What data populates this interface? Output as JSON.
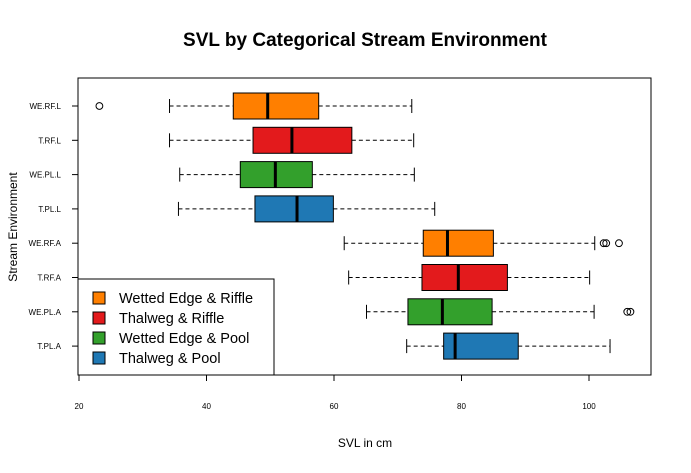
{
  "chart_data": {
    "type": "boxplot",
    "orientation": "horizontal",
    "title": "SVL by Categorical Stream Environment",
    "xlabel": "SVL in cm",
    "ylabel": "Stream Environment",
    "xlim": [
      20,
      110
    ],
    "x_ticks": [
      20,
      40,
      60,
      80,
      100
    ],
    "grid": false,
    "legend_position": "bottom-left",
    "colors": {
      "wetted_edge_riffle": "#ff7f00",
      "thalweg_riffle": "#e31a1c",
      "wetted_edge_pool": "#33a02c",
      "thalweg_pool": "#1f78b4"
    },
    "legend": [
      {
        "label": "Wetted Edge & Riffle",
        "color": "#ff7f00"
      },
      {
        "label": "Thalweg & Riffle",
        "color": "#e31a1c"
      },
      {
        "label": "Wetted Edge & Pool",
        "color": "#33a02c"
      },
      {
        "label": "Thalweg & Pool",
        "color": "#1f78b4"
      }
    ],
    "boxes": [
      {
        "category": "WE.RF.L",
        "color": "#ff7f00",
        "whisker_low": 34.2,
        "q1": 44.2,
        "median": 49.6,
        "q3": 57.6,
        "whisker_high": 72.2,
        "outliers": [
          23.2
        ]
      },
      {
        "category": "T.RF.L",
        "color": "#e31a1c",
        "whisker_low": 34.2,
        "q1": 47.3,
        "median": 53.4,
        "q3": 62.8,
        "whisker_high": 72.5,
        "outliers": []
      },
      {
        "category": "WE.PL.L",
        "color": "#33a02c",
        "whisker_low": 35.8,
        "q1": 45.3,
        "median": 50.8,
        "q3": 56.6,
        "whisker_high": 72.6,
        "outliers": []
      },
      {
        "category": "T.PL.L",
        "color": "#1f78b4",
        "whisker_low": 35.6,
        "q1": 47.6,
        "median": 54.2,
        "q3": 59.9,
        "whisker_high": 75.8,
        "outliers": []
      },
      {
        "category": "WE.RF.A",
        "color": "#ff7f00",
        "whisker_low": 61.6,
        "q1": 74.0,
        "median": 77.8,
        "q3": 85.0,
        "whisker_high": 100.9,
        "outliers": [
          102.3,
          102.7,
          104.7
        ]
      },
      {
        "category": "T.RF.A",
        "color": "#e31a1c",
        "whisker_low": 62.3,
        "q1": 73.8,
        "median": 79.5,
        "q3": 87.2,
        "whisker_high": 100.1,
        "outliers": []
      },
      {
        "category": "WE.PL.A",
        "color": "#33a02c",
        "whisker_low": 65.1,
        "q1": 71.6,
        "median": 77.0,
        "q3": 84.8,
        "whisker_high": 100.8,
        "outliers": [
          106.0,
          106.5
        ]
      },
      {
        "category": "T.PL.A",
        "color": "#1f78b4",
        "whisker_low": 71.4,
        "q1": 77.2,
        "median": 79.0,
        "q3": 88.9,
        "whisker_high": 103.3,
        "outliers": []
      }
    ]
  }
}
